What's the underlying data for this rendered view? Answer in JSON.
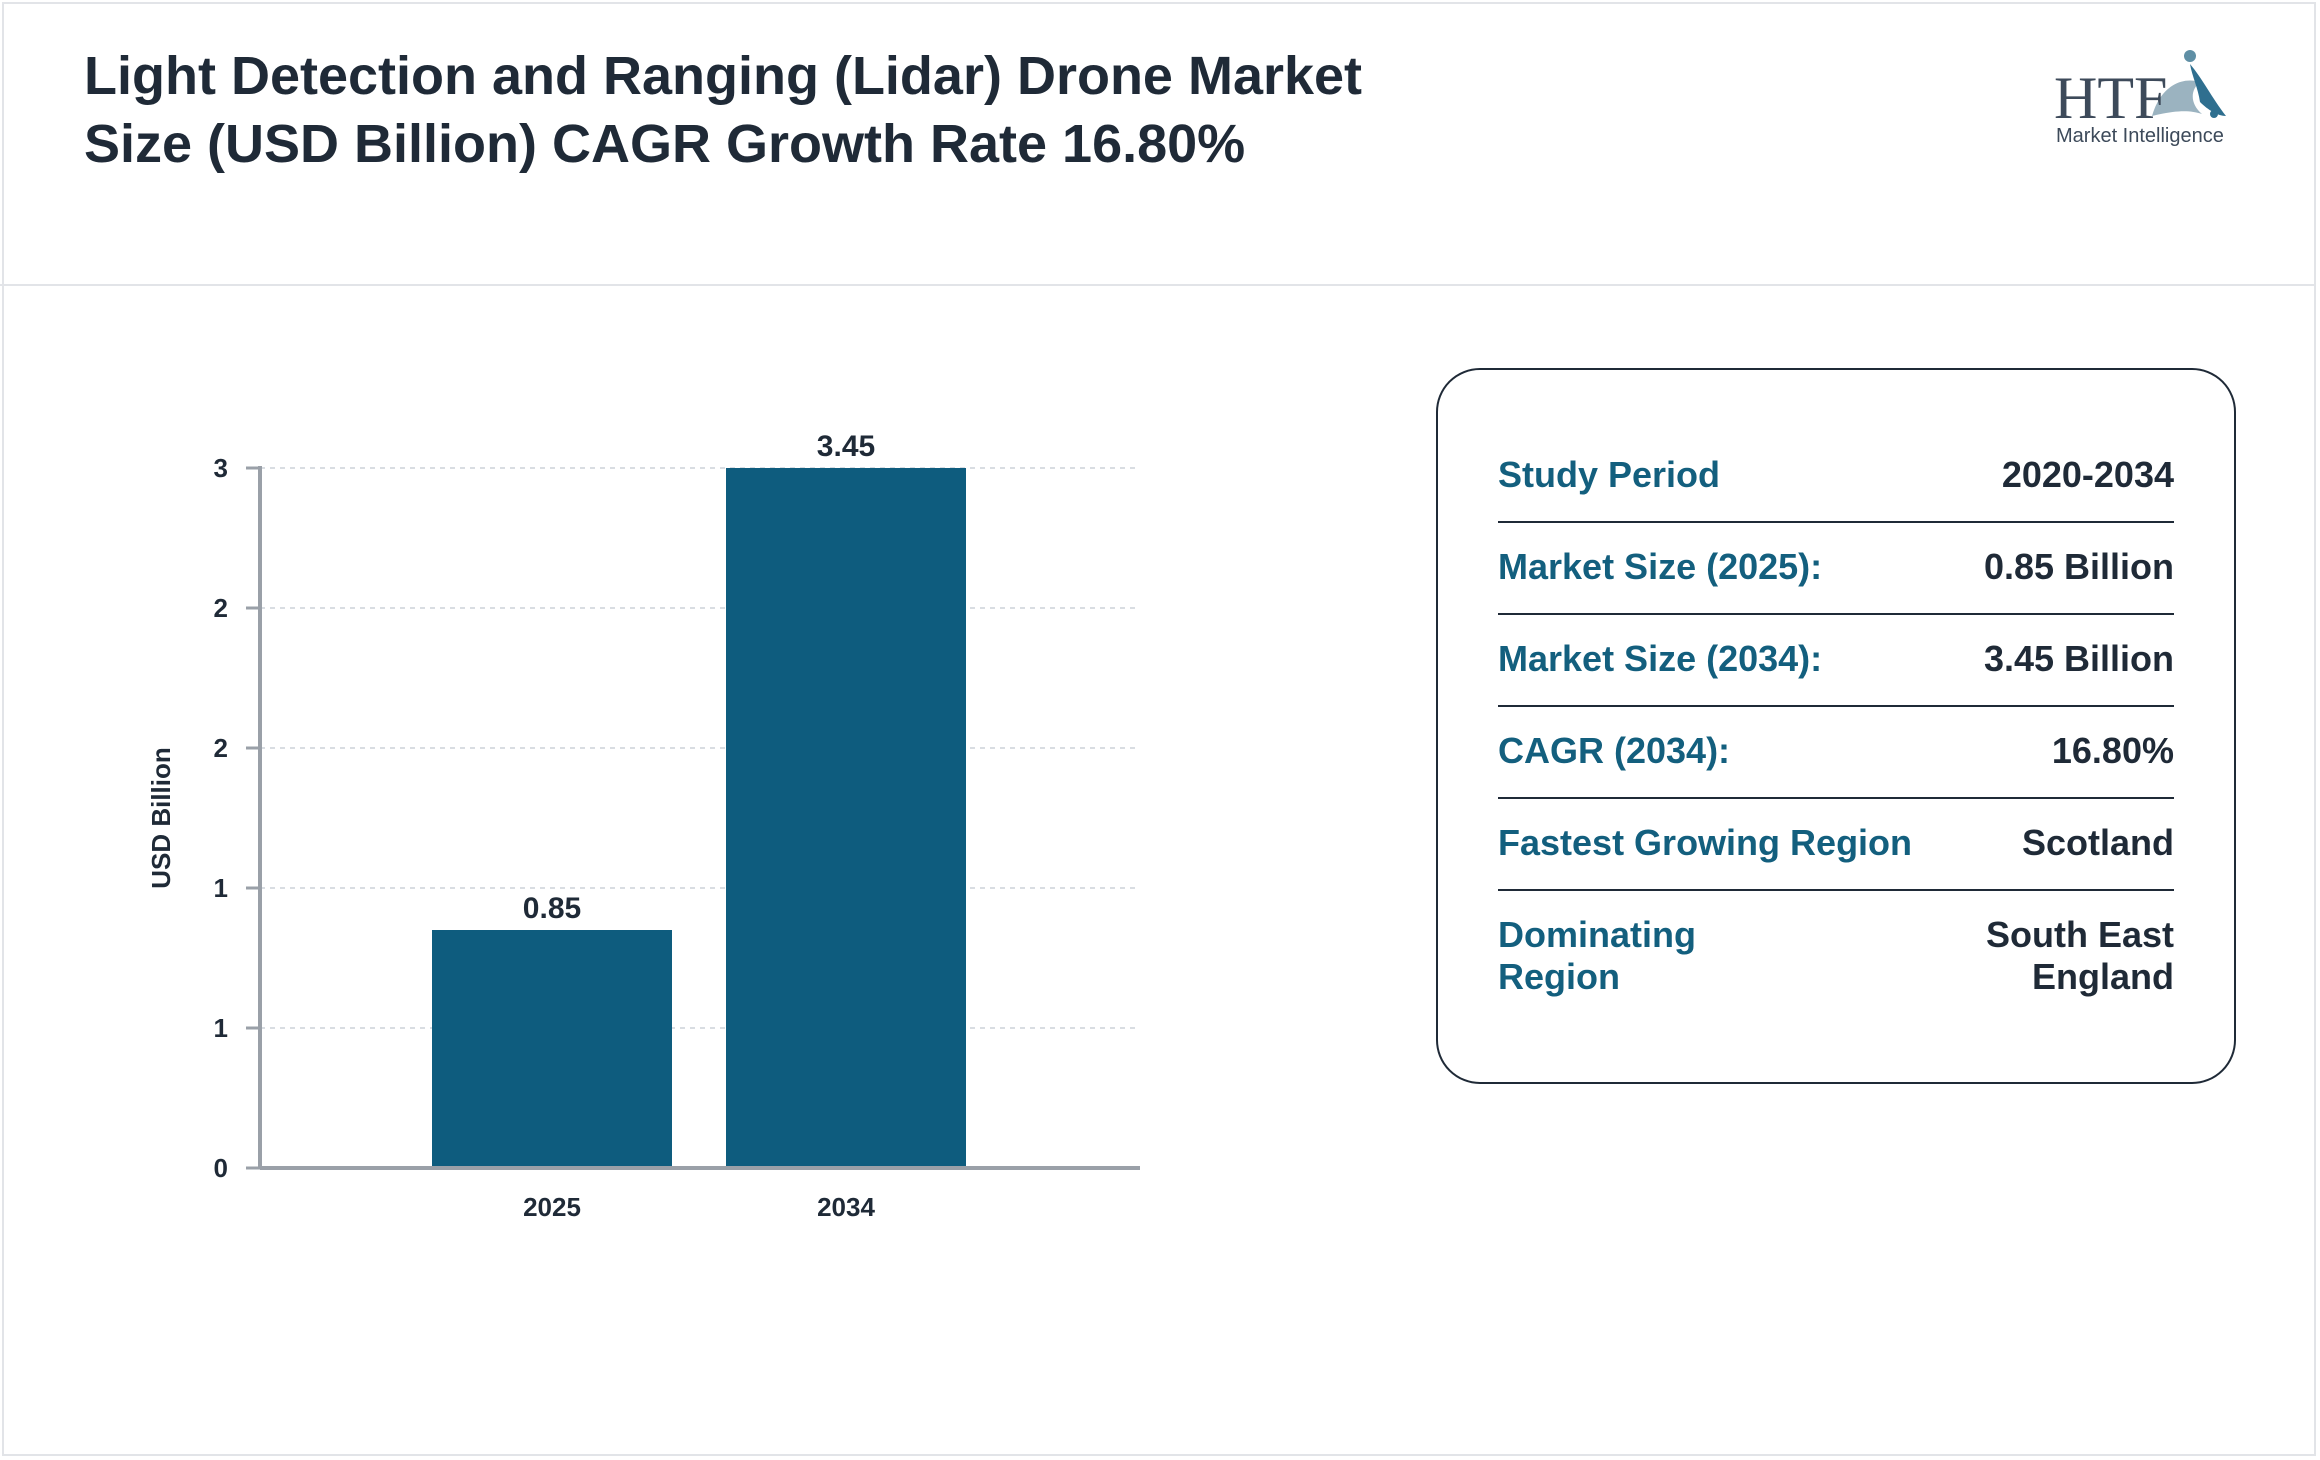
{
  "header": {
    "title": "Light Detection and Ranging (Lidar) Drone Market Size (USD Billion) CAGR Growth Rate 16.80%",
    "logo_text_main": "HTF",
    "logo_text_sub": "Market Intelligence"
  },
  "chart_data": {
    "type": "bar",
    "categories": [
      "2025",
      "2034"
    ],
    "values": [
      0.85,
      3.45
    ],
    "data_labels": [
      "0.85",
      "3.45"
    ],
    "ylabel": "USD Billion",
    "y_ticks": [
      {
        "value": 0,
        "label": "0"
      },
      {
        "value": 0.5,
        "label": "1"
      },
      {
        "value": 1.0,
        "label": "1"
      },
      {
        "value": 1.5,
        "label": "2"
      },
      {
        "value": 2.0,
        "label": "2"
      },
      {
        "value": 2.5,
        "label": "3"
      }
    ],
    "ylim": [
      0,
      2.5
    ],
    "bar_color": "#0e5c7e",
    "grid": true
  },
  "info": {
    "rows": [
      {
        "key": "Study Period",
        "value": "2020-2034"
      },
      {
        "key": "Market Size (2025):",
        "value": "0.85 Billion"
      },
      {
        "key": "Market Size (2034):",
        "value": "3.45 Billion"
      },
      {
        "key": "CAGR (2034):",
        "value": "16.80%"
      },
      {
        "key": "Fastest Growing Region",
        "value": "Scotland"
      },
      {
        "key": "Dominating Region",
        "value": "South East England"
      }
    ]
  },
  "colors": {
    "accent": "#135f7e",
    "text": "#1f2a37",
    "bar": "#0e5c7e"
  }
}
